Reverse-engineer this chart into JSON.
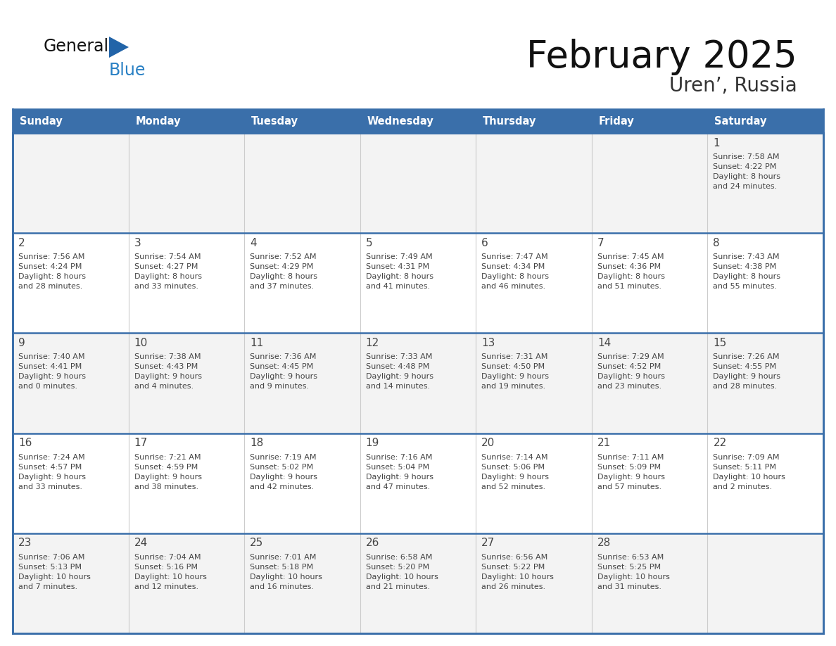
{
  "title": "February 2025",
  "subtitle": "Uren’, Russia",
  "days_of_week": [
    "Sunday",
    "Monday",
    "Tuesday",
    "Wednesday",
    "Thursday",
    "Friday",
    "Saturday"
  ],
  "header_bg": "#3a6faa",
  "header_text": "#ffffff",
  "row_bg_0": "#f3f3f3",
  "row_bg_1": "#ffffff",
  "row_bg_2": "#f3f3f3",
  "row_bg_3": "#ffffff",
  "row_bg_4": "#f3f3f3",
  "separator_color": "#3a6faa",
  "cell_border_color": "#cccccc",
  "text_color": "#444444",
  "title_color": "#111111",
  "subtitle_color": "#333333",
  "logo_general_color": "#111111",
  "logo_blue_color": "#2980c4",
  "logo_triangle_color": "#2264a8",
  "calendar_data": [
    {
      "day": 1,
      "col": 6,
      "row": 0,
      "sunrise": "7:58 AM",
      "sunset": "4:22 PM",
      "daylight": "8 hours\nand 24 minutes."
    },
    {
      "day": 2,
      "col": 0,
      "row": 1,
      "sunrise": "7:56 AM",
      "sunset": "4:24 PM",
      "daylight": "8 hours\nand 28 minutes."
    },
    {
      "day": 3,
      "col": 1,
      "row": 1,
      "sunrise": "7:54 AM",
      "sunset": "4:27 PM",
      "daylight": "8 hours\nand 33 minutes."
    },
    {
      "day": 4,
      "col": 2,
      "row": 1,
      "sunrise": "7:52 AM",
      "sunset": "4:29 PM",
      "daylight": "8 hours\nand 37 minutes."
    },
    {
      "day": 5,
      "col": 3,
      "row": 1,
      "sunrise": "7:49 AM",
      "sunset": "4:31 PM",
      "daylight": "8 hours\nand 41 minutes."
    },
    {
      "day": 6,
      "col": 4,
      "row": 1,
      "sunrise": "7:47 AM",
      "sunset": "4:34 PM",
      "daylight": "8 hours\nand 46 minutes."
    },
    {
      "day": 7,
      "col": 5,
      "row": 1,
      "sunrise": "7:45 AM",
      "sunset": "4:36 PM",
      "daylight": "8 hours\nand 51 minutes."
    },
    {
      "day": 8,
      "col": 6,
      "row": 1,
      "sunrise": "7:43 AM",
      "sunset": "4:38 PM",
      "daylight": "8 hours\nand 55 minutes."
    },
    {
      "day": 9,
      "col": 0,
      "row": 2,
      "sunrise": "7:40 AM",
      "sunset": "4:41 PM",
      "daylight": "9 hours\nand 0 minutes."
    },
    {
      "day": 10,
      "col": 1,
      "row": 2,
      "sunrise": "7:38 AM",
      "sunset": "4:43 PM",
      "daylight": "9 hours\nand 4 minutes."
    },
    {
      "day": 11,
      "col": 2,
      "row": 2,
      "sunrise": "7:36 AM",
      "sunset": "4:45 PM",
      "daylight": "9 hours\nand 9 minutes."
    },
    {
      "day": 12,
      "col": 3,
      "row": 2,
      "sunrise": "7:33 AM",
      "sunset": "4:48 PM",
      "daylight": "9 hours\nand 14 minutes."
    },
    {
      "day": 13,
      "col": 4,
      "row": 2,
      "sunrise": "7:31 AM",
      "sunset": "4:50 PM",
      "daylight": "9 hours\nand 19 minutes."
    },
    {
      "day": 14,
      "col": 5,
      "row": 2,
      "sunrise": "7:29 AM",
      "sunset": "4:52 PM",
      "daylight": "9 hours\nand 23 minutes."
    },
    {
      "day": 15,
      "col": 6,
      "row": 2,
      "sunrise": "7:26 AM",
      "sunset": "4:55 PM",
      "daylight": "9 hours\nand 28 minutes."
    },
    {
      "day": 16,
      "col": 0,
      "row": 3,
      "sunrise": "7:24 AM",
      "sunset": "4:57 PM",
      "daylight": "9 hours\nand 33 minutes."
    },
    {
      "day": 17,
      "col": 1,
      "row": 3,
      "sunrise": "7:21 AM",
      "sunset": "4:59 PM",
      "daylight": "9 hours\nand 38 minutes."
    },
    {
      "day": 18,
      "col": 2,
      "row": 3,
      "sunrise": "7:19 AM",
      "sunset": "5:02 PM",
      "daylight": "9 hours\nand 42 minutes."
    },
    {
      "day": 19,
      "col": 3,
      "row": 3,
      "sunrise": "7:16 AM",
      "sunset": "5:04 PM",
      "daylight": "9 hours\nand 47 minutes."
    },
    {
      "day": 20,
      "col": 4,
      "row": 3,
      "sunrise": "7:14 AM",
      "sunset": "5:06 PM",
      "daylight": "9 hours\nand 52 minutes."
    },
    {
      "day": 21,
      "col": 5,
      "row": 3,
      "sunrise": "7:11 AM",
      "sunset": "5:09 PM",
      "daylight": "9 hours\nand 57 minutes."
    },
    {
      "day": 22,
      "col": 6,
      "row": 3,
      "sunrise": "7:09 AM",
      "sunset": "5:11 PM",
      "daylight": "10 hours\nand 2 minutes."
    },
    {
      "day": 23,
      "col": 0,
      "row": 4,
      "sunrise": "7:06 AM",
      "sunset": "5:13 PM",
      "daylight": "10 hours\nand 7 minutes."
    },
    {
      "day": 24,
      "col": 1,
      "row": 4,
      "sunrise": "7:04 AM",
      "sunset": "5:16 PM",
      "daylight": "10 hours\nand 12 minutes."
    },
    {
      "day": 25,
      "col": 2,
      "row": 4,
      "sunrise": "7:01 AM",
      "sunset": "5:18 PM",
      "daylight": "10 hours\nand 16 minutes."
    },
    {
      "day": 26,
      "col": 3,
      "row": 4,
      "sunrise": "6:58 AM",
      "sunset": "5:20 PM",
      "daylight": "10 hours\nand 21 minutes."
    },
    {
      "day": 27,
      "col": 4,
      "row": 4,
      "sunrise": "6:56 AM",
      "sunset": "5:22 PM",
      "daylight": "10 hours\nand 26 minutes."
    },
    {
      "day": 28,
      "col": 5,
      "row": 4,
      "sunrise": "6:53 AM",
      "sunset": "5:25 PM",
      "daylight": "10 hours\nand 31 minutes."
    }
  ]
}
